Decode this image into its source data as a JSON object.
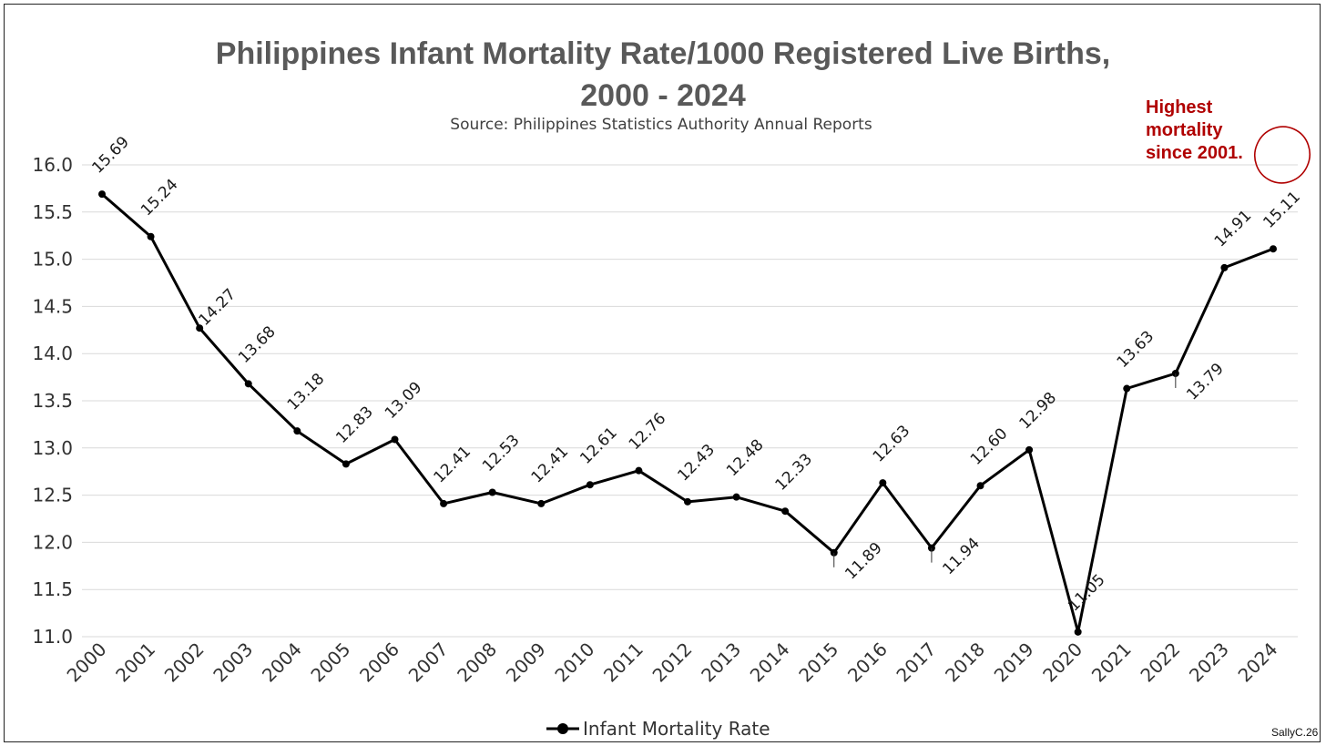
{
  "chart_data": {
    "type": "line",
    "title_line1": "Philippines Infant Mortality Rate/1000 Registered Live Births,",
    "title_line2": "2000 - 2024",
    "subtitle": "Source: Philippines Statistics Authority Annual Reports",
    "xlabel": "",
    "ylabel": "",
    "ylim": [
      11.0,
      16.0
    ],
    "yticks": [
      "11.0",
      "11.5",
      "12.0",
      "12.5",
      "13.0",
      "13.5",
      "14.0",
      "14.5",
      "15.0",
      "15.5",
      "16.0"
    ],
    "grid": true,
    "categories": [
      "2000",
      "2001",
      "2002",
      "2003",
      "2004",
      "2005",
      "2006",
      "2007",
      "2008",
      "2009",
      "2010",
      "2011",
      "2012",
      "2013",
      "2014",
      "2015",
      "2016",
      "2017",
      "2018",
      "2019",
      "2020",
      "2021",
      "2022",
      "2023",
      "2024"
    ],
    "series": [
      {
        "name": "Infant Mortality Rate",
        "color": "#000000",
        "values": [
          15.69,
          15.24,
          14.27,
          13.68,
          13.18,
          12.83,
          13.09,
          12.41,
          12.53,
          12.41,
          12.61,
          12.76,
          12.43,
          12.48,
          12.33,
          11.89,
          12.63,
          11.94,
          12.6,
          12.98,
          11.05,
          13.63,
          13.79,
          14.91,
          15.11
        ],
        "labels": [
          "15.69",
          "15.24",
          "14.27",
          "13.68",
          "13.18",
          "12.83",
          "13.09",
          "12.41",
          "12.53",
          "12.41",
          "12.61",
          "12.76",
          "12.43",
          "12.48",
          "12.33",
          "11.89",
          "12.63",
          "11.94",
          "12.60",
          "12.98",
          "11.05",
          "13.63",
          "13.79",
          "14.91",
          "15.11"
        ],
        "label_side": [
          "above",
          "above",
          "right",
          "above",
          "above",
          "above",
          "above",
          "above",
          "above",
          "above",
          "above",
          "above",
          "above",
          "above",
          "above",
          "below",
          "above",
          "below",
          "above",
          "above",
          "above",
          "above",
          "below",
          "above",
          "above"
        ]
      }
    ],
    "legend": {
      "label": "Infant Mortality Rate",
      "position": "bottom-center"
    },
    "annotation": {
      "lines": [
        "Highest",
        "mortality",
        "since 2001."
      ],
      "color": "#b00000"
    },
    "credit": "SallyC.26"
  }
}
